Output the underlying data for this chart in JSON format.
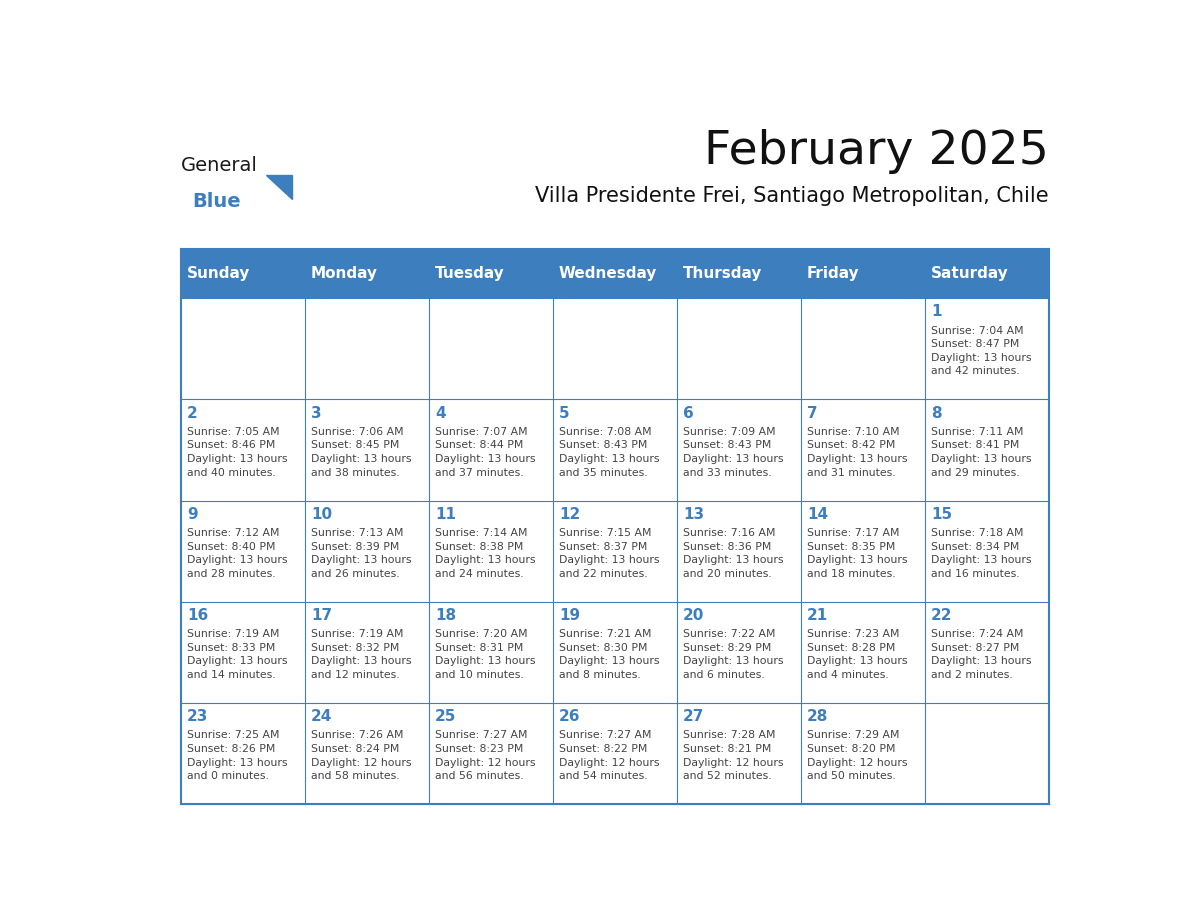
{
  "title": "February 2025",
  "subtitle": "Villa Presidente Frei, Santiago Metropolitan, Chile",
  "header_color": "#3d7ebf",
  "header_text_color": "#ffffff",
  "cell_bg_color": "#ffffff",
  "border_color": "#3d7ebf",
  "text_color": "#444444",
  "day_number_color": "#3d7ebf",
  "days_of_week": [
    "Sunday",
    "Monday",
    "Tuesday",
    "Wednesday",
    "Thursday",
    "Friday",
    "Saturday"
  ],
  "weeks": [
    [
      {
        "day": null,
        "info": null
      },
      {
        "day": null,
        "info": null
      },
      {
        "day": null,
        "info": null
      },
      {
        "day": null,
        "info": null
      },
      {
        "day": null,
        "info": null
      },
      {
        "day": null,
        "info": null
      },
      {
        "day": 1,
        "info": "Sunrise: 7:04 AM\nSunset: 8:47 PM\nDaylight: 13 hours\nand 42 minutes."
      }
    ],
    [
      {
        "day": 2,
        "info": "Sunrise: 7:05 AM\nSunset: 8:46 PM\nDaylight: 13 hours\nand 40 minutes."
      },
      {
        "day": 3,
        "info": "Sunrise: 7:06 AM\nSunset: 8:45 PM\nDaylight: 13 hours\nand 38 minutes."
      },
      {
        "day": 4,
        "info": "Sunrise: 7:07 AM\nSunset: 8:44 PM\nDaylight: 13 hours\nand 37 minutes."
      },
      {
        "day": 5,
        "info": "Sunrise: 7:08 AM\nSunset: 8:43 PM\nDaylight: 13 hours\nand 35 minutes."
      },
      {
        "day": 6,
        "info": "Sunrise: 7:09 AM\nSunset: 8:43 PM\nDaylight: 13 hours\nand 33 minutes."
      },
      {
        "day": 7,
        "info": "Sunrise: 7:10 AM\nSunset: 8:42 PM\nDaylight: 13 hours\nand 31 minutes."
      },
      {
        "day": 8,
        "info": "Sunrise: 7:11 AM\nSunset: 8:41 PM\nDaylight: 13 hours\nand 29 minutes."
      }
    ],
    [
      {
        "day": 9,
        "info": "Sunrise: 7:12 AM\nSunset: 8:40 PM\nDaylight: 13 hours\nand 28 minutes."
      },
      {
        "day": 10,
        "info": "Sunrise: 7:13 AM\nSunset: 8:39 PM\nDaylight: 13 hours\nand 26 minutes."
      },
      {
        "day": 11,
        "info": "Sunrise: 7:14 AM\nSunset: 8:38 PM\nDaylight: 13 hours\nand 24 minutes."
      },
      {
        "day": 12,
        "info": "Sunrise: 7:15 AM\nSunset: 8:37 PM\nDaylight: 13 hours\nand 22 minutes."
      },
      {
        "day": 13,
        "info": "Sunrise: 7:16 AM\nSunset: 8:36 PM\nDaylight: 13 hours\nand 20 minutes."
      },
      {
        "day": 14,
        "info": "Sunrise: 7:17 AM\nSunset: 8:35 PM\nDaylight: 13 hours\nand 18 minutes."
      },
      {
        "day": 15,
        "info": "Sunrise: 7:18 AM\nSunset: 8:34 PM\nDaylight: 13 hours\nand 16 minutes."
      }
    ],
    [
      {
        "day": 16,
        "info": "Sunrise: 7:19 AM\nSunset: 8:33 PM\nDaylight: 13 hours\nand 14 minutes."
      },
      {
        "day": 17,
        "info": "Sunrise: 7:19 AM\nSunset: 8:32 PM\nDaylight: 13 hours\nand 12 minutes."
      },
      {
        "day": 18,
        "info": "Sunrise: 7:20 AM\nSunset: 8:31 PM\nDaylight: 13 hours\nand 10 minutes."
      },
      {
        "day": 19,
        "info": "Sunrise: 7:21 AM\nSunset: 8:30 PM\nDaylight: 13 hours\nand 8 minutes."
      },
      {
        "day": 20,
        "info": "Sunrise: 7:22 AM\nSunset: 8:29 PM\nDaylight: 13 hours\nand 6 minutes."
      },
      {
        "day": 21,
        "info": "Sunrise: 7:23 AM\nSunset: 8:28 PM\nDaylight: 13 hours\nand 4 minutes."
      },
      {
        "day": 22,
        "info": "Sunrise: 7:24 AM\nSunset: 8:27 PM\nDaylight: 13 hours\nand 2 minutes."
      }
    ],
    [
      {
        "day": 23,
        "info": "Sunrise: 7:25 AM\nSunset: 8:26 PM\nDaylight: 13 hours\nand 0 minutes."
      },
      {
        "day": 24,
        "info": "Sunrise: 7:26 AM\nSunset: 8:24 PM\nDaylight: 12 hours\nand 58 minutes."
      },
      {
        "day": 25,
        "info": "Sunrise: 7:27 AM\nSunset: 8:23 PM\nDaylight: 12 hours\nand 56 minutes."
      },
      {
        "day": 26,
        "info": "Sunrise: 7:27 AM\nSunset: 8:22 PM\nDaylight: 12 hours\nand 54 minutes."
      },
      {
        "day": 27,
        "info": "Sunrise: 7:28 AM\nSunset: 8:21 PM\nDaylight: 12 hours\nand 52 minutes."
      },
      {
        "day": 28,
        "info": "Sunrise: 7:29 AM\nSunset: 8:20 PM\nDaylight: 12 hours\nand 50 minutes."
      },
      {
        "day": null,
        "info": null
      }
    ]
  ],
  "logo_text_general": "General",
  "logo_text_blue": "Blue",
  "logo_triangle_color": "#3d7ebf",
  "logo_general_color": "#1a1a1a",
  "logo_blue_color": "#3d7ebf",
  "title_fontsize": 34,
  "subtitle_fontsize": 15,
  "dow_fontsize": 11,
  "day_num_fontsize": 11,
  "info_fontsize": 7.8
}
